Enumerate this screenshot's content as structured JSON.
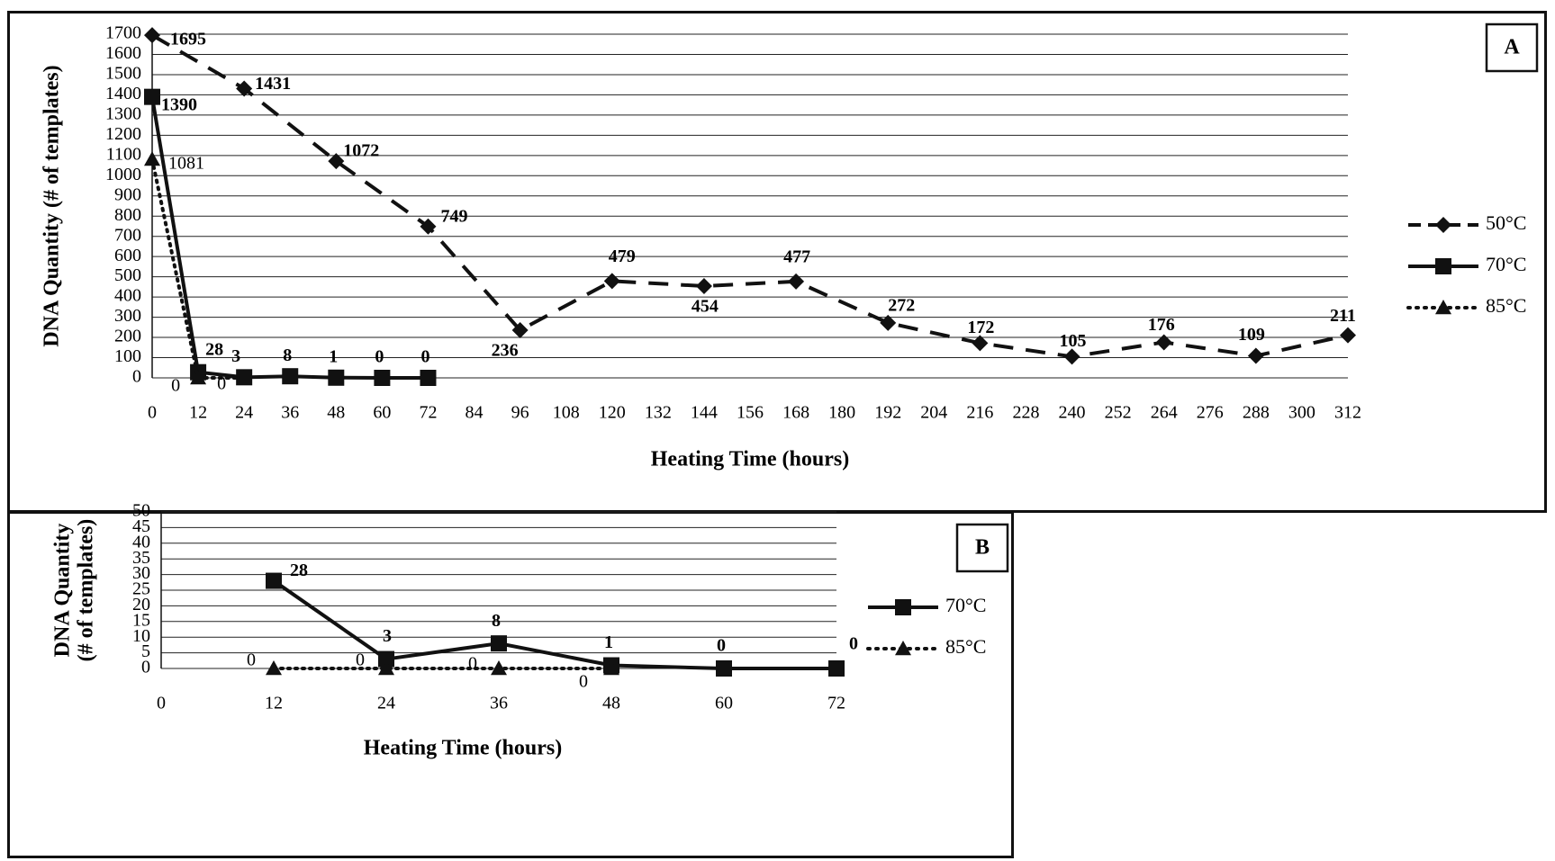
{
  "chart_data": [
    {
      "type": "line",
      "panel_label": "A",
      "xlabel": "Heating Time (hours)",
      "ylabel": "DNA Quantity (# of templates)",
      "ylim": [
        0,
        1700
      ],
      "yticks": [
        "0",
        "100",
        "200",
        "300",
        "400",
        "500",
        "600",
        "700",
        "800",
        "900",
        "1000",
        "1100",
        "1200",
        "1300",
        "1400",
        "1500",
        "1600",
        "1700"
      ],
      "xticks": [
        "0",
        "12",
        "24",
        "36",
        "48",
        "60",
        "72",
        "84",
        "96",
        "108",
        "120",
        "132",
        "144",
        "156",
        "168",
        "180",
        "192",
        "204",
        "216",
        "228",
        "240",
        "252",
        "264",
        "276",
        "288",
        "300",
        "312"
      ],
      "xlim": [
        0,
        312
      ],
      "grid": true,
      "legend_position": "right",
      "series": [
        {
          "name": "50°C",
          "style": "dashed",
          "marker": "diamond",
          "x": [
            0,
            24,
            48,
            72,
            96,
            120,
            144,
            168,
            192,
            216,
            240,
            264,
            288,
            312
          ],
          "y": [
            1695,
            1431,
            1072,
            749,
            236,
            479,
            454,
            477,
            272,
            172,
            105,
            176,
            109,
            211
          ],
          "labels": [
            "1695",
            "1431",
            "1072",
            "749",
            "236",
            "479",
            "454",
            "477",
            "272",
            "172",
            "105",
            "176",
            "109",
            "211"
          ]
        },
        {
          "name": "70°C",
          "style": "solid",
          "marker": "square",
          "x": [
            0,
            12,
            24,
            36,
            48,
            60,
            72
          ],
          "y": [
            1390,
            28,
            3,
            8,
            1,
            0,
            0
          ],
          "labels": [
            "1390",
            "28",
            "3",
            "8",
            "1",
            "0",
            "0"
          ]
        },
        {
          "name": "85°C",
          "style": "dotted",
          "marker": "triangle",
          "x": [
            0,
            12,
            24
          ],
          "y": [
            1081,
            0,
            0
          ],
          "labels": [
            "1081",
            "0",
            "0"
          ]
        }
      ]
    },
    {
      "type": "line",
      "panel_label": "B",
      "xlabel": "Heating Time (hours)",
      "ylabel": [
        "DNA Quantity",
        "(# of templates)"
      ],
      "ylim": [
        0,
        50
      ],
      "yticks": [
        "0",
        "5",
        "10",
        "15",
        "20",
        "25",
        "30",
        "35",
        "40",
        "45",
        "50"
      ],
      "xticks": [
        "0",
        "12",
        "24",
        "36",
        "48",
        "60",
        "72"
      ],
      "xlim": [
        0,
        72
      ],
      "grid": true,
      "legend_position": "right",
      "series": [
        {
          "name": "70°C",
          "style": "solid",
          "marker": "square",
          "x": [
            12,
            24,
            36,
            48,
            60,
            72
          ],
          "y": [
            28,
            3,
            8,
            1,
            0,
            0
          ],
          "labels": [
            "28",
            "3",
            "8",
            "1",
            "0",
            "0"
          ]
        },
        {
          "name": "85°C",
          "style": "dotted",
          "marker": "triangle",
          "x": [
            12,
            24,
            36,
            48
          ],
          "y": [
            0,
            0,
            0,
            0
          ],
          "labels": [
            "0",
            "0",
            "0",
            "0"
          ]
        }
      ]
    }
  ]
}
